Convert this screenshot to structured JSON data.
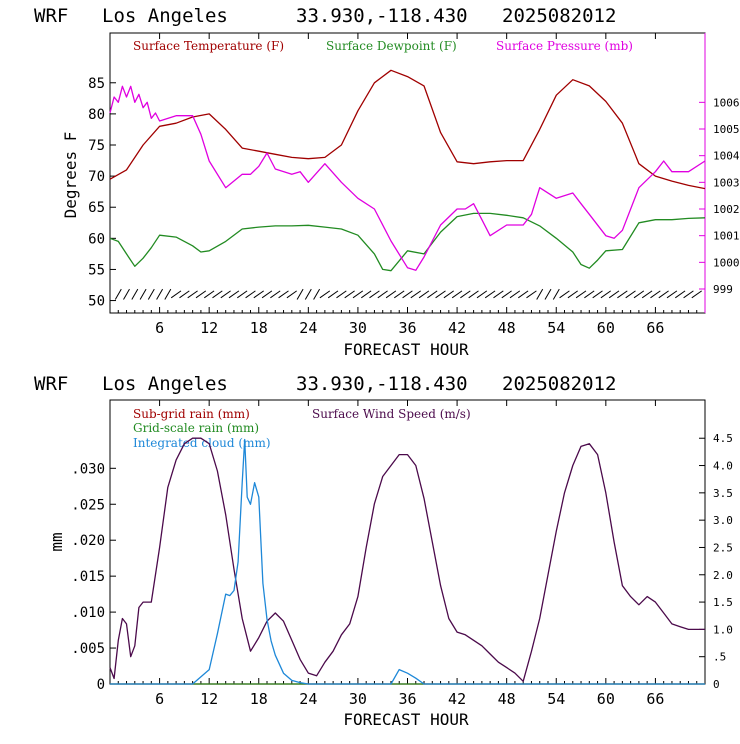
{
  "panels": [
    {
      "header": {
        "model": "WRF",
        "location": "Los Angeles",
        "coords": "33.930,-118.430",
        "run": "2025082012"
      },
      "xlabel": "FORECAST HOUR",
      "ylabel": "Degrees F",
      "legend": [
        "Surface Temperature (F)",
        "Surface Dewpoint (F)",
        "Surface Pressure (mb)"
      ]
    },
    {
      "header": {
        "model": "WRF",
        "location": "Los Angeles",
        "coords": "33.930,-118.430",
        "run": "2025082012"
      },
      "xlabel": "FORECAST HOUR",
      "ylabel": "mm",
      "legend": [
        "Sub-grid rain (mm)",
        "Grid-scale rain (mm)",
        "Integrated cloud (mm)",
        "Surface Wind Speed (m/s)"
      ]
    }
  ],
  "chart_data": [
    {
      "type": "line",
      "title": "WRF  Los Angeles  33.930,-118.430  2025082012",
      "xlabel": "FORECAST HOUR",
      "ylabel": "Degrees F",
      "xlim": [
        0,
        72
      ],
      "ylim": [
        48,
        93
      ],
      "y2lim": [
        998.1,
        1008.6
      ],
      "x_ticks": [
        6,
        12,
        18,
        24,
        30,
        36,
        42,
        48,
        54,
        60,
        66
      ],
      "y_ticks": [
        50,
        55,
        60,
        65,
        70,
        75,
        80,
        85
      ],
      "y_tick_labels": [
        "50",
        "55",
        "60",
        "65",
        "70",
        "75",
        "80",
        "85"
      ],
      "y2_ticks": [
        999,
        1000,
        1001,
        1002,
        1003,
        1004,
        1005,
        1006
      ],
      "y2_tick_labels": [
        "999",
        "1000",
        "1001",
        "1002",
        "1003",
        "1004",
        "1005",
        "1006"
      ],
      "colors": {
        "temperature": "#a00000",
        "dewpoint": "#228b22",
        "pressure": "#e000e0",
        "wind_barbs": "#000000"
      },
      "series": [
        {
          "name": "Surface Temperature (F)",
          "axis": "left",
          "x": [
            0,
            2,
            4,
            6,
            8,
            10,
            12,
            14,
            16,
            18,
            20,
            22,
            24,
            26,
            28,
            30,
            32,
            34,
            36,
            38,
            40,
            42,
            44,
            46,
            48,
            50,
            52,
            54,
            56,
            58,
            60,
            62,
            64,
            66,
            68,
            70,
            72
          ],
          "values": [
            69.5,
            71,
            75,
            78,
            78.5,
            79.5,
            80,
            77.5,
            74.5,
            74,
            73.5,
            73,
            72.8,
            73,
            75,
            80.5,
            85,
            87,
            86,
            84.5,
            77,
            72.3,
            72,
            72.3,
            72.5,
            72.5,
            77.5,
            83,
            85.5,
            84.5,
            82,
            78.5,
            72,
            70,
            69.2,
            68.5,
            68
          ]
        },
        {
          "name": "Surface Dewpoint (F)",
          "axis": "left",
          "x": [
            0,
            1,
            2,
            3,
            4,
            5,
            6,
            8,
            10,
            11,
            12,
            14,
            16,
            18,
            20,
            22,
            24,
            26,
            28,
            30,
            32,
            33,
            34,
            36,
            38,
            40,
            42,
            44,
            46,
            48,
            50,
            52,
            54,
            56,
            57,
            58,
            59,
            60,
            62,
            64,
            66,
            68,
            70,
            72
          ],
          "values": [
            60,
            59.5,
            57.5,
            55.5,
            56.8,
            58.5,
            60.5,
            60.2,
            58.8,
            57.8,
            58,
            59.5,
            61.5,
            61.8,
            62,
            62,
            62.1,
            61.8,
            61.5,
            60.5,
            57.5,
            55,
            54.8,
            58,
            57.5,
            61,
            63.5,
            64,
            64,
            63.7,
            63.3,
            62,
            60,
            57.8,
            55.8,
            55.2,
            56.5,
            58,
            58.2,
            62.5,
            63,
            63,
            63.2,
            63.3
          ]
        },
        {
          "name": "Surface Pressure (mb)",
          "axis": "right",
          "x": [
            0,
            0.5,
            1,
            1.5,
            2,
            2.5,
            3,
            3.5,
            4,
            4.5,
            5,
            5.5,
            6,
            8,
            10,
            11,
            12,
            14,
            16,
            17,
            18,
            19,
            20,
            22,
            23,
            24,
            26,
            28,
            30,
            32,
            34,
            36,
            37,
            38,
            40,
            42,
            43,
            44,
            45,
            46,
            48,
            50,
            51,
            52,
            54,
            56,
            57,
            58,
            60,
            61,
            62,
            64,
            66,
            67,
            68,
            70,
            72
          ],
          "values": [
            1005.6,
            1006.2,
            1006,
            1006.6,
            1006.2,
            1006.6,
            1006,
            1006.3,
            1005.8,
            1006,
            1005.4,
            1005.6,
            1005.3,
            1005.5,
            1005.5,
            1004.8,
            1003.8,
            1002.8,
            1003.3,
            1003.3,
            1003.6,
            1004.1,
            1003.5,
            1003.3,
            1003.4,
            1003,
            1003.7,
            1003,
            1002.4,
            1002,
            1000.8,
            999.8,
            999.7,
            1000.2,
            1001.4,
            1002,
            1002,
            1002.2,
            1001.6,
            1001,
            1001.4,
            1001.4,
            1001.8,
            1002.8,
            1002.4,
            1002.6,
            1002.2,
            1001.8,
            1001,
            1000.9,
            1001.2,
            1002.8,
            1003.4,
            1003.8,
            1003.4,
            1003.4,
            1003.8
          ]
        }
      ]
    },
    {
      "type": "line",
      "title": "WRF  Los Angeles  33.930,-118.430  2025082012",
      "xlabel": "FORECAST HOUR",
      "ylabel": "mm",
      "xlim": [
        0,
        72
      ],
      "ylim": [
        0,
        0.0395
      ],
      "y2lim": [
        0,
        5.2
      ],
      "x_ticks": [
        6,
        12,
        18,
        24,
        30,
        36,
        42,
        48,
        54,
        60,
        66
      ],
      "y_ticks": [
        0,
        0.005,
        0.01,
        0.015,
        0.02,
        0.025,
        0.03
      ],
      "y_tick_labels": [
        "0",
        ".005",
        ".010",
        ".015",
        ".020",
        ".025",
        ".030"
      ],
      "y2_ticks": [
        0,
        0.5,
        1.0,
        1.5,
        2.0,
        2.5,
        3.0,
        3.5,
        4.0,
        4.5
      ],
      "y2_tick_labels": [
        "0",
        ".5",
        "1.0",
        "1.5",
        "2.0",
        "2.5",
        "3.0",
        "3.5",
        "4.0",
        "4.5"
      ],
      "colors": {
        "subgrid_rain": "#a00000",
        "gridscale_rain": "#228b22",
        "cloud": "#1e88d8",
        "wind": "#4b0a4b"
      },
      "series": [
        {
          "name": "Sub-grid rain (mm)",
          "axis": "left",
          "x": [
            0,
            72
          ],
          "values": [
            0,
            0
          ]
        },
        {
          "name": "Grid-scale rain (mm)",
          "axis": "left",
          "x": [
            0,
            72
          ],
          "values": [
            0,
            0
          ]
        },
        {
          "name": "Integrated cloud (mm)",
          "axis": "left",
          "x": [
            0,
            10,
            12,
            13,
            14,
            14.5,
            15,
            15.5,
            16,
            16.3,
            16.6,
            17,
            17.5,
            18,
            18.5,
            19,
            19.5,
            20,
            21,
            22,
            23,
            24,
            34,
            35,
            36,
            37,
            38,
            72
          ],
          "values": [
            0,
            0,
            0.002,
            0.007,
            0.0125,
            0.0123,
            0.013,
            0.017,
            0.028,
            0.034,
            0.026,
            0.025,
            0.028,
            0.026,
            0.014,
            0.009,
            0.006,
            0.004,
            0.0015,
            0.0005,
            0.0002,
            0,
            0,
            0.002,
            0.0015,
            0.0008,
            0,
            0
          ]
        },
        {
          "name": "Surface Wind Speed (m/s)",
          "axis": "right",
          "x": [
            0,
            0.5,
            1,
            1.5,
            2,
            2.5,
            3,
            3.5,
            4,
            5,
            6,
            7,
            8,
            9,
            10,
            11,
            12,
            13,
            14,
            15,
            16,
            17,
            18,
            19,
            20,
            21,
            22,
            23,
            24,
            25,
            26,
            27,
            28,
            29,
            30,
            31,
            32,
            33,
            34,
            35,
            36,
            37,
            38,
            39,
            40,
            41,
            42,
            43,
            44,
            45,
            46,
            47,
            48,
            49,
            50,
            51,
            52,
            53,
            54,
            55,
            56,
            57,
            58,
            59,
            60,
            61,
            62,
            63,
            64,
            65,
            66,
            67,
            68,
            69,
            70,
            71,
            72
          ],
          "values": [
            0.3,
            0.1,
            0.8,
            1.2,
            1.1,
            0.5,
            0.7,
            1.4,
            1.5,
            1.5,
            2.5,
            3.6,
            4.1,
            4.4,
            4.5,
            4.5,
            4.4,
            3.9,
            3.1,
            2.1,
            1.2,
            0.6,
            0.85,
            1.15,
            1.3,
            1.15,
            0.8,
            0.45,
            0.2,
            0.15,
            0.4,
            0.6,
            0.9,
            1.1,
            1.6,
            2.5,
            3.3,
            3.8,
            4.0,
            4.2,
            4.2,
            4.0,
            3.4,
            2.6,
            1.8,
            1.2,
            0.95,
            0.9,
            0.8,
            0.7,
            0.55,
            0.4,
            0.3,
            0.2,
            0.05,
            0.6,
            1.2,
            2.0,
            2.8,
            3.5,
            4.0,
            4.35,
            4.4,
            4.2,
            3.5,
            2.6,
            1.8,
            1.6,
            1.45,
            1.6,
            1.5,
            1.3,
            1.1,
            1.05,
            1.0,
            1.0,
            1.0
          ]
        }
      ]
    }
  ]
}
